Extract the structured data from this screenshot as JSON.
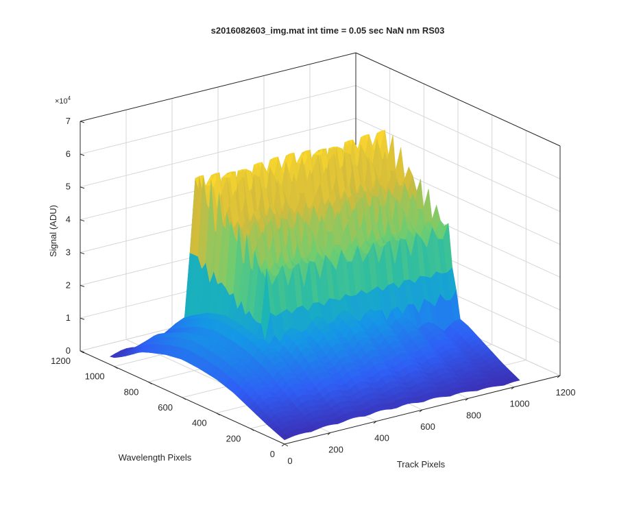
{
  "chart_data": {
    "type": "surface",
    "title": "s2016082603_img.mat int time = 0.05 sec  NaN nm RS03",
    "xlabel": "Track Pixels",
    "ylabel": "Wavelength Pixels",
    "zlabel": "Signal (ADU)",
    "z_exponent_label": "×10",
    "z_exponent_power": "4",
    "xlim": [
      0,
      1200
    ],
    "ylim": [
      0,
      1200
    ],
    "zlim": [
      0,
      70000
    ],
    "x_ticks": [
      "0",
      "200",
      "400",
      "600",
      "800",
      "1000",
      "1200"
    ],
    "y_ticks": [
      "0",
      "200",
      "400",
      "600",
      "800",
      "1000",
      "1200"
    ],
    "z_ticks": [
      "0",
      "1",
      "2",
      "3",
      "4",
      "5",
      "6",
      "7"
    ],
    "grid": true,
    "colormap": [
      "#3e26a8",
      "#2f5ff5",
      "#1597e6",
      "#1cb8b0",
      "#6ccd72",
      "#d2bb3c",
      "#f9d52e",
      "#f9fb0e"
    ],
    "x_extent": [
      0,
      1024
    ],
    "y_extent": [
      0,
      1024
    ],
    "band": {
      "y_range": [
        330,
        850
      ],
      "x_range": [
        170,
        1024
      ],
      "peak": 65000,
      "wavelength_cutoff": 850
    },
    "ridge_profile_along_wavelength": [
      {
        "y": 0,
        "signal": 3000
      },
      {
        "y": 100,
        "signal": 8000
      },
      {
        "y": 200,
        "signal": 14000
      },
      {
        "y": 300,
        "signal": 20000
      },
      {
        "y": 400,
        "signal": 24000
      },
      {
        "y": 500,
        "signal": 26000
      },
      {
        "y": 600,
        "signal": 27000
      },
      {
        "y": 700,
        "signal": 25000
      },
      {
        "y": 800,
        "signal": 21000
      },
      {
        "y": 900,
        "signal": 16000
      },
      {
        "y": 1000,
        "signal": 10000
      }
    ]
  }
}
